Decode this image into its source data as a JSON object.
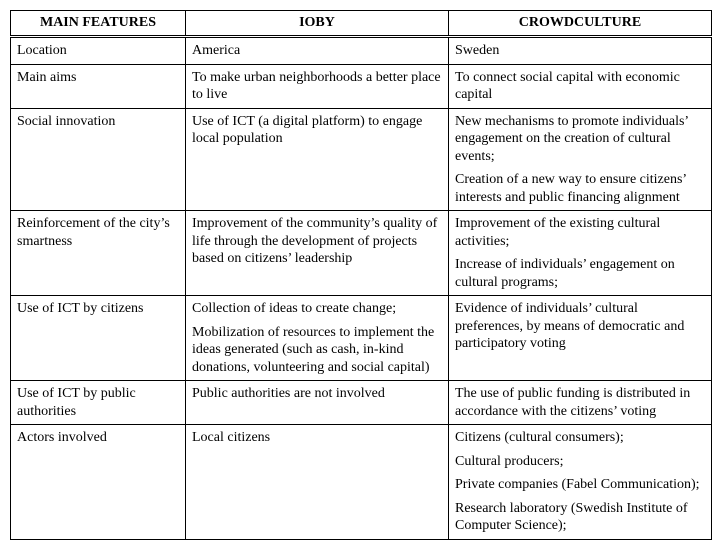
{
  "table": {
    "columns": [
      "MAIN FEATURES",
      "IOBY",
      "CROWDCULTURE"
    ],
    "rows": [
      {
        "feature": [
          "Location"
        ],
        "ioby": [
          "America"
        ],
        "crowdculture": [
          "Sweden"
        ]
      },
      {
        "feature": [
          "Main aims"
        ],
        "ioby": [
          "To make urban neighborhoods a better place to live"
        ],
        "crowdculture": [
          "To connect social capital with economic capital"
        ]
      },
      {
        "feature": [
          "Social innovation"
        ],
        "ioby": [
          "Use of ICT (a digital platform) to engage local population"
        ],
        "crowdculture": [
          "New mechanisms to promote individuals’ engagement on the creation of cultural events;",
          "Creation of a new way to ensure citizens’ interests and public financing alignment"
        ]
      },
      {
        "feature": [
          "Reinforcement of the city’s smartness"
        ],
        "ioby": [
          "Improvement of the community’s quality of life through the development of projects based on citizens’ leadership"
        ],
        "crowdculture": [
          "Improvement of the existing cultural activities;",
          "Increase of individuals’ engagement on cultural programs;"
        ]
      },
      {
        "feature": [
          "Use of ICT by citizens"
        ],
        "ioby": [
          "Collection of ideas to create change;",
          "Mobilization of resources to implement the ideas generated (such as cash, in-kind donations, volunteering and social capital)"
        ],
        "crowdculture": [
          "Evidence of individuals’ cultural preferences, by means of democratic and participatory voting"
        ]
      },
      {
        "feature": [
          "Use of ICT by public authorities"
        ],
        "ioby": [
          "Public authorities are not involved"
        ],
        "crowdculture": [
          "The use of public funding is distributed in accordance with the citizens’ voting"
        ]
      },
      {
        "feature": [
          "Actors involved"
        ],
        "ioby": [
          "Local citizens"
        ],
        "crowdculture": [
          "Citizens (cultural consumers);",
          "Cultural producers;",
          "Private companies (Fabel Communication);",
          "Research laboratory (Swedish Institute of Computer Science);"
        ]
      }
    ]
  }
}
